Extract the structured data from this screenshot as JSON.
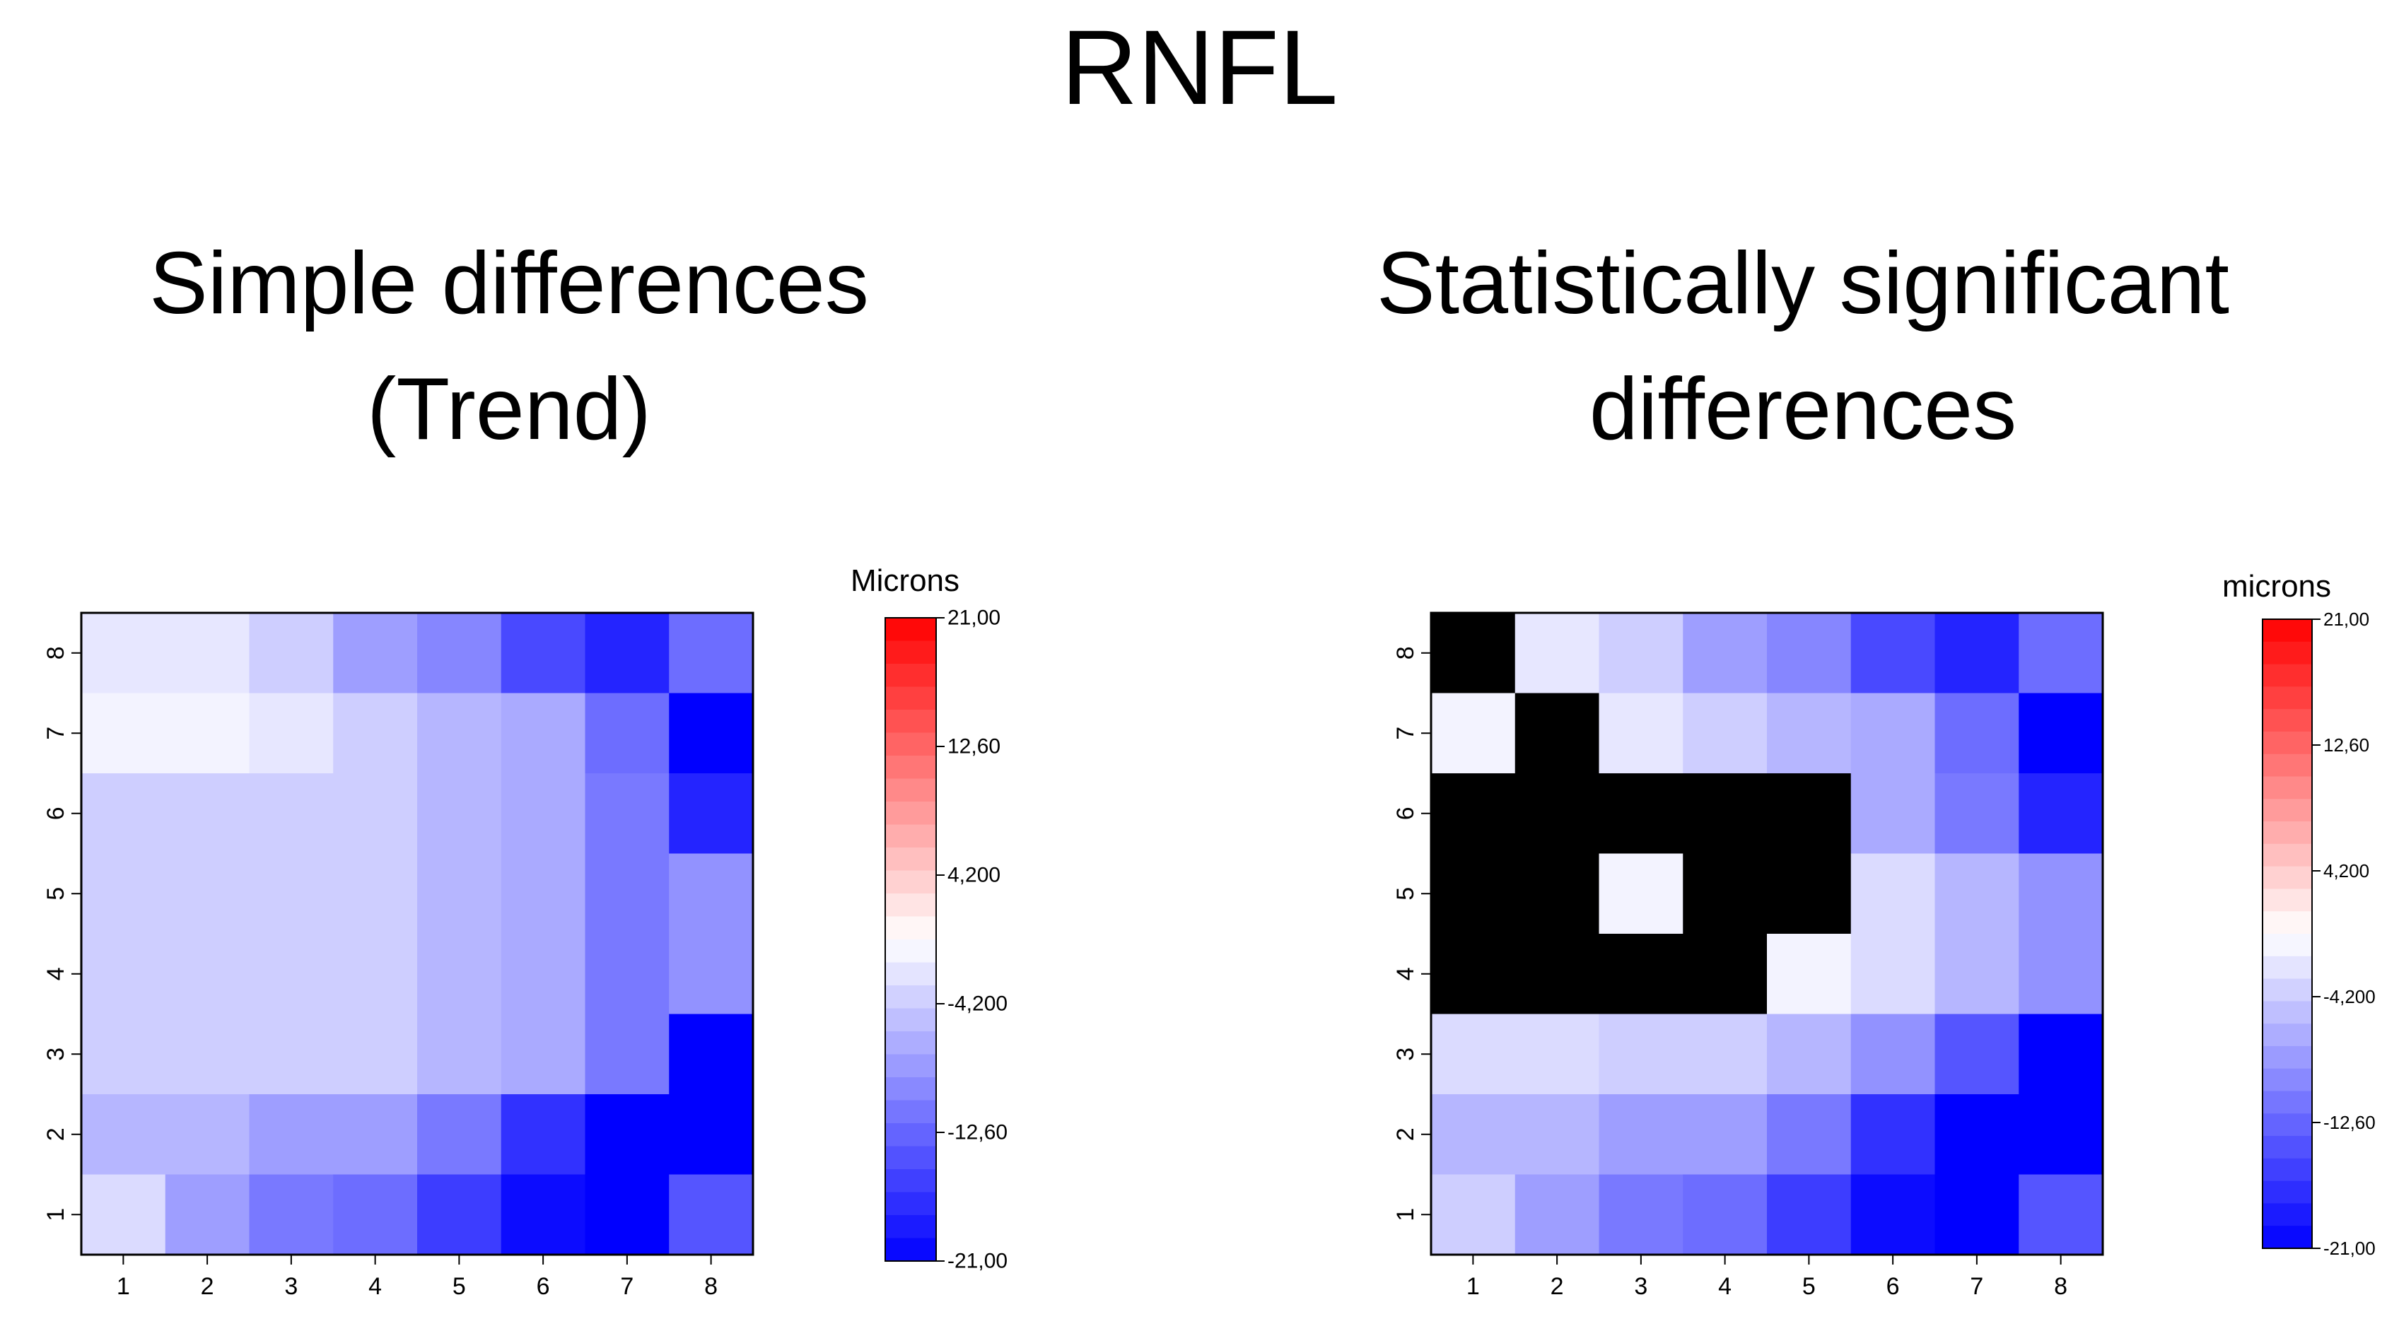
{
  "page": {
    "title": "RNFL"
  },
  "panels": [
    {
      "title_lines": [
        "Simple differences",
        "(Trend)"
      ]
    },
    {
      "title_lines": [
        "Statistically significant",
        "differences"
      ]
    }
  ],
  "colors": {
    "positive_max": "#ff0000",
    "neutral": "#ffffff",
    "negative_max": "#0000ff",
    "not_significant": "#000000",
    "axis": "#000000"
  },
  "chart_data": [
    {
      "type": "heatmap",
      "title": "Simple differences (Trend)",
      "x": [
        1,
        2,
        3,
        4,
        5,
        6,
        7,
        8
      ],
      "y": [
        1,
        2,
        3,
        4,
        5,
        6,
        7,
        8
      ],
      "xlabel": "",
      "ylabel": "",
      "value_unit": "microns",
      "legend_title": "Microns",
      "legend_ticks": [
        "21,00",
        "12,60",
        "4,200",
        "-4,200",
        "-12,60",
        "-21,00"
      ],
      "legend_range": [
        -21,
        21
      ],
      "grid": false,
      "legend_position": "right",
      "rows_top_to_bottom": [
        [
          -2,
          -2,
          -4,
          -8,
          -10,
          -15,
          -18,
          -12
        ],
        [
          -1,
          -1,
          -2,
          -4,
          -6,
          -7,
          -12,
          -21
        ],
        [
          -4,
          -4,
          -4,
          -4,
          -6,
          -7,
          -11,
          -18
        ],
        [
          -4,
          -4,
          -4,
          -4,
          -6,
          -7,
          -11,
          -9
        ],
        [
          -4,
          -4,
          -4,
          -4,
          -6,
          -7,
          -11,
          -9
        ],
        [
          -4,
          -4,
          -4,
          -4,
          -6,
          -7,
          -11,
          -21
        ],
        [
          -6,
          -6,
          -8,
          -8,
          -11,
          -17,
          -21,
          -21
        ],
        [
          -3,
          -8,
          -11,
          -12,
          -16,
          -20,
          -21,
          -14
        ]
      ]
    },
    {
      "type": "heatmap",
      "title": "Statistically significant differences",
      "x": [
        1,
        2,
        3,
        4,
        5,
        6,
        7,
        8
      ],
      "y": [
        1,
        2,
        3,
        4,
        5,
        6,
        7,
        8
      ],
      "xlabel": "",
      "ylabel": "",
      "value_unit": "microns",
      "legend_title": "microns",
      "legend_ticks": [
        "21,00",
        "12,60",
        "4,200",
        "-4,200",
        "-12,60",
        "-21,00"
      ],
      "legend_range": [
        -21,
        21
      ],
      "grid": false,
      "legend_position": "right",
      "not_significant_cells_shown_as": "black",
      "rows_top_to_bottom": [
        [
          null,
          -2,
          -4,
          -8,
          -10,
          -15,
          -18,
          -12
        ],
        [
          -1,
          null,
          -2,
          -4,
          -6,
          -7,
          -12,
          -21
        ],
        [
          null,
          null,
          null,
          null,
          null,
          -7,
          -11,
          -18
        ],
        [
          null,
          null,
          -1,
          null,
          null,
          -3,
          -6,
          -9
        ],
        [
          null,
          null,
          null,
          null,
          -1,
          -3,
          -6,
          -9
        ],
        [
          -3,
          -3,
          -4,
          -4,
          -6,
          -9,
          -14,
          -21
        ],
        [
          -6,
          -6,
          -8,
          -8,
          -11,
          -17,
          -21,
          -21
        ],
        [
          -4,
          -8,
          -11,
          -12,
          -16,
          -20,
          -21,
          -14
        ]
      ]
    }
  ]
}
